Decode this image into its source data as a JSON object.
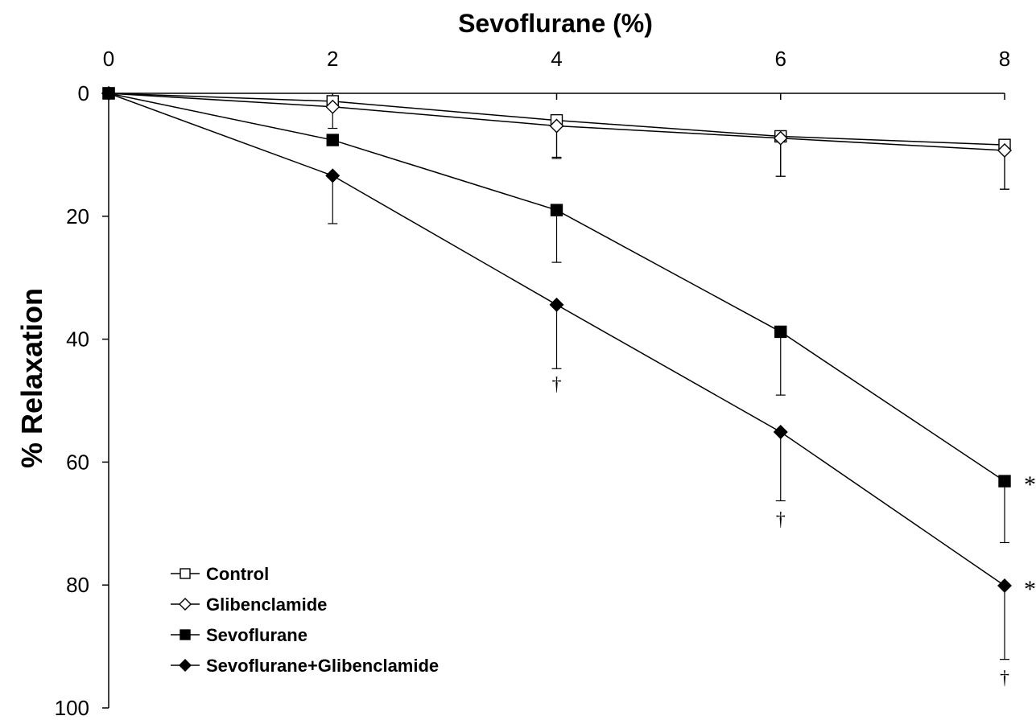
{
  "chart_data": {
    "type": "line",
    "xlabel": "Sevoflurane (%)",
    "ylabel": "% Relaxation",
    "x": [
      0,
      2,
      4,
      6,
      8
    ],
    "xlim": [
      0,
      8
    ],
    "ylim": [
      0,
      100
    ],
    "y_inverted": true,
    "x_axis_position": "top",
    "xticks": [
      0,
      2,
      4,
      6,
      8
    ],
    "yticks": [
      0,
      20,
      40,
      60,
      80,
      100
    ],
    "grid": false,
    "legend_position": "bottom-left",
    "series": [
      {
        "name": "Control",
        "marker": "open-square",
        "color": "#000000",
        "values": [
          0,
          1.3,
          4.4,
          7.0,
          8.4
        ],
        "error": [
          0,
          0,
          6.0,
          6.5,
          7.2
        ]
      },
      {
        "name": "Glibenclamide",
        "marker": "open-diamond",
        "color": "#000000",
        "values": [
          0,
          2.2,
          5.3,
          7.3,
          9.3
        ],
        "error": [
          0,
          3.5,
          5.3,
          6.2,
          6.3
        ]
      },
      {
        "name": "Sevoflurane",
        "marker": "filled-square",
        "color": "#000000",
        "values": [
          0,
          7.6,
          19.0,
          38.8,
          63.1
        ],
        "error": [
          0,
          0,
          8.5,
          10.3,
          10.0
        ]
      },
      {
        "name": "Sevoflurane+Glibenclamide",
        "marker": "filled-diamond",
        "color": "#000000",
        "values": [
          0,
          13.4,
          34.4,
          55.1,
          80.1
        ],
        "error": [
          0,
          7.8,
          10.4,
          11.2,
          12.0
        ]
      }
    ],
    "annotations": [
      {
        "text": "†",
        "x": 4,
        "y": 47.5
      },
      {
        "text": "†",
        "x": 6,
        "y": 69.5
      },
      {
        "text": "†",
        "x": 8,
        "y": 95.3
      },
      {
        "text": "*",
        "x": 8,
        "y": 63.1,
        "side": "right"
      },
      {
        "text": "*",
        "x": 8,
        "y": 80.1,
        "side": "right"
      }
    ]
  }
}
